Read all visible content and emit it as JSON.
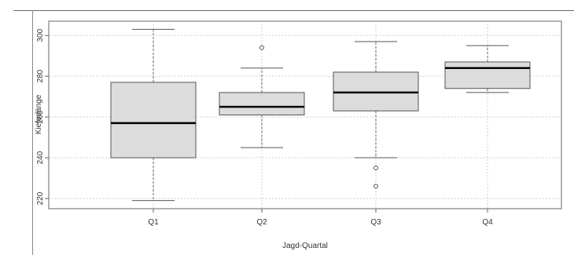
{
  "chart_data": {
    "type": "boxplot",
    "title": "",
    "xlabel": "Jagd-Quartal",
    "ylabel": "Kieferlänge",
    "categories": [
      "Q1",
      "Q2",
      "Q3",
      "Q4"
    ],
    "ylim": [
      215,
      307
    ],
    "yticks": [
      220,
      240,
      260,
      280,
      300
    ],
    "grid": true,
    "colors": {
      "box_fill": "#dcdcdc",
      "box_stroke": "#555555",
      "median": "#000000",
      "grid": "#cfcfcf"
    },
    "boxes": [
      {
        "category": "Q1",
        "whisker_low": 219,
        "q1": 240,
        "median": 257,
        "q3": 277,
        "whisker_high": 303,
        "outliers": []
      },
      {
        "category": "Q2",
        "whisker_low": 245,
        "q1": 261,
        "median": 265,
        "q3": 272,
        "whisker_high": 284,
        "outliers": [
          294
        ]
      },
      {
        "category": "Q3",
        "whisker_low": 240,
        "q1": 263,
        "median": 272,
        "q3": 282,
        "whisker_high": 297,
        "outliers": [
          235,
          226
        ]
      },
      {
        "category": "Q4",
        "whisker_low": 272,
        "q1": 274,
        "median": 284,
        "q3": 287,
        "whisker_high": 295,
        "outliers": []
      }
    ]
  }
}
